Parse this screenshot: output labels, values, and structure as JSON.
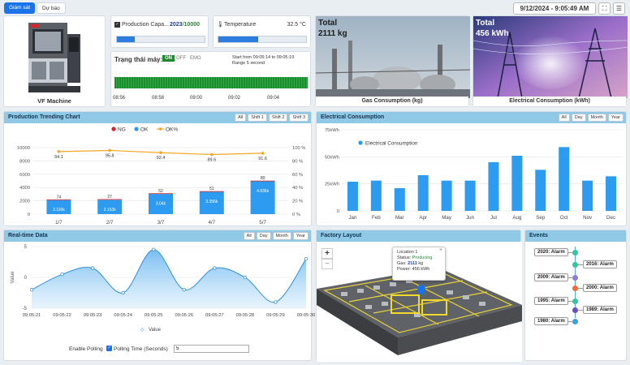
{
  "tabs": [
    {
      "label": "Giám sát"
    },
    {
      "label": "Dự báo"
    }
  ],
  "datetime": "9/12/2024 - 9:05:49 AM",
  "machine": {
    "name": "VF Machine"
  },
  "production": {
    "label": "Production Capa...",
    "value": "2023",
    "sep": "/",
    "target": "10000",
    "progress": 0.2
  },
  "temperature": {
    "label": "Temperature",
    "value": "32.5 °C",
    "progress": 0.45
  },
  "machine_state": {
    "label": "Trạng thái máy:",
    "on": "ON",
    "off": "OFF",
    "emg": "EMG",
    "range_from": "Start from 09:05:14 to 09:05:19",
    "range": "Range 5 second",
    "ticks": [
      "08:56",
      "08:58",
      "09:00",
      "09:02",
      "09:04"
    ]
  },
  "gas": {
    "total_label": "Total",
    "total_value": "2111 kg",
    "caption": "Gas Consumption (kg)"
  },
  "electric": {
    "total_label": "Total",
    "total_value": "456 kWh",
    "caption": "Electrical Consumption (kWh)"
  },
  "production_chart": {
    "title": "Production Trending Chart",
    "buttons": [
      "All",
      "Shift 1",
      "Shift 2",
      "Shift 3"
    ],
    "chart_data": {
      "type": "bar",
      "categories": [
        "1/7",
        "2/7",
        "3/7",
        "4/7",
        "5/7"
      ],
      "series": [
        {
          "name": "NG",
          "values": [
            74,
            27,
            52,
            51,
            80
          ],
          "color": "#e02020"
        },
        {
          "name": "OK",
          "values": [
            2116,
            2153,
            3040,
            3356,
            4936
          ],
          "color": "#2d9cf0"
        },
        {
          "name": "OK%",
          "values": [
            94.1,
            95.8,
            92.4,
            89.6,
            91.6
          ],
          "color": "#f5a623"
        }
      ],
      "value_labels": [
        "2.116k",
        "2.153k",
        "3.04k",
        "3.356k",
        "4.936k"
      ],
      "ok_pct_labels": [
        "94.1",
        "95.8",
        "92.4",
        "89.6",
        "91.6"
      ],
      "ylim": [
        0,
        10000
      ],
      "yticks": [
        "0",
        "2000",
        "4000",
        "6000",
        "8000",
        "10000"
      ],
      "y2ticks": [
        "0 %",
        "20 %",
        "40 %",
        "60 %",
        "80 %",
        "100 %"
      ]
    }
  },
  "electrical_chart": {
    "title": "Electrical Consumption",
    "buttons": [
      "All",
      "Day",
      "Month",
      "Year"
    ],
    "chart_data": {
      "type": "bar",
      "categories": [
        "Jan",
        "Feb",
        "Mar",
        "Apr",
        "May",
        "Jun",
        "Jul",
        "Aug",
        "Sep",
        "Oct",
        "Nov",
        "Dec"
      ],
      "series": [
        {
          "name": "Electrical Consumption",
          "values": [
            27,
            28,
            21,
            33,
            28,
            28,
            45,
            51,
            38,
            59,
            28,
            32
          ],
          "color": "#2d9cf0"
        }
      ],
      "ylim": [
        0,
        75
      ],
      "yticks": [
        "0",
        "25kWh",
        "50kWh",
        "75kWh"
      ]
    }
  },
  "realtime": {
    "title": "Real-time Data",
    "buttons": [
      "All",
      "Day",
      "Month",
      "Year"
    ],
    "chart_data": {
      "type": "area",
      "x": [
        "09:05:21",
        "09:05:22",
        "09:05:23",
        "09:05:24",
        "09:05:25",
        "09:05:26",
        "09:05:27",
        "09:05:28",
        "09:05:29",
        "09:05:30"
      ],
      "series": [
        {
          "name": "Value",
          "values": [
            -2,
            0.5,
            1.5,
            -2.5,
            4.5,
            -2,
            1.5,
            0,
            -4,
            3
          ]
        }
      ],
      "ylim": [
        -5,
        5
      ],
      "yticks": [
        "5",
        "0",
        "-5"
      ],
      "ylabel": "Value"
    },
    "polling_label": "Enable Polling",
    "polling_time_label": "Polling Time (Seconds)",
    "polling_time_value": "5"
  },
  "factory": {
    "title": "Factory Layout",
    "tooltip": {
      "location": "Location 1",
      "status_label": "Status:",
      "status": "Producing",
      "gas_label": "Gas:",
      "gas": "2111",
      "gas_unit": "kg",
      "power": "Power: 456 kWh"
    },
    "close": "×"
  },
  "events": {
    "title": "Events",
    "items": [
      {
        "label": "2020: Alarm",
        "color": "#2ec7a0",
        "side": "left"
      },
      {
        "label": "2016: Alarm",
        "color": "#2ec7a0",
        "side": "right"
      },
      {
        "label": "2009: Alarm",
        "color": "#8a7fd6",
        "side": "left"
      },
      {
        "label": "2000: Alarm",
        "color": "#f06b3a",
        "side": "right"
      },
      {
        "label": "1995: Alarm",
        "color": "#2ec7a0",
        "side": "left"
      },
      {
        "label": "1989: Alarm",
        "color": "#6a4fc4",
        "side": "right"
      },
      {
        "label": "1980: Alarm",
        "color": "#3a9fe6",
        "side": "left"
      }
    ]
  }
}
